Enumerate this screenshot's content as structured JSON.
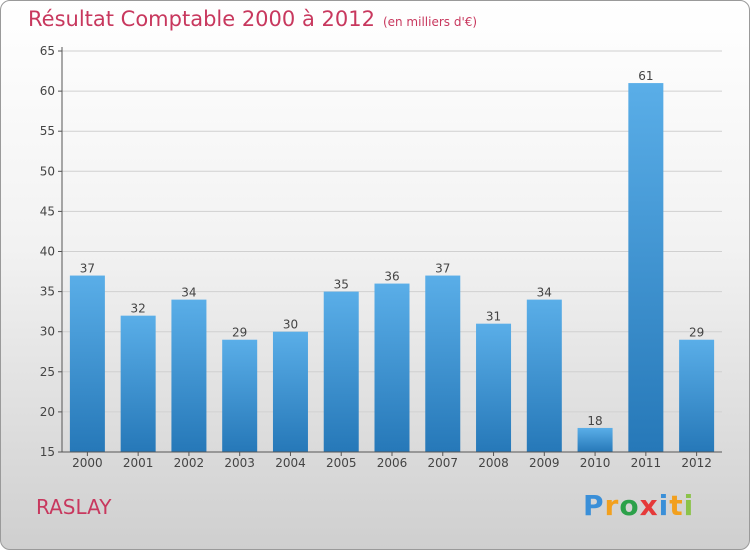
{
  "header": {
    "title": "Résultat Comptable 2000 à 2012",
    "unit": "(en milliers d'€)"
  },
  "footer": {
    "town": "RASLAY",
    "brand": "Proxiti"
  },
  "colors": {
    "bar_top": "#5aaee8",
    "bar_bottom": "#2678b8",
    "axis": "#555555",
    "grid": "#d0d0d0",
    "title": "#c8385e"
  },
  "chart_data": {
    "type": "bar",
    "title": "Résultat Comptable 2000 à 2012",
    "subtitle": "(en milliers d'€)",
    "xlabel": "",
    "ylabel": "",
    "categories": [
      "2000",
      "2001",
      "2002",
      "2003",
      "2004",
      "2005",
      "2006",
      "2007",
      "2008",
      "2009",
      "2010",
      "2011",
      "2012"
    ],
    "values": [
      37,
      32,
      34,
      29,
      30,
      35,
      36,
      37,
      31,
      34,
      18,
      61,
      29
    ],
    "ylim": [
      15,
      65
    ],
    "yticks": [
      15,
      20,
      25,
      30,
      35,
      40,
      45,
      50,
      55,
      60,
      65
    ],
    "grid": true,
    "legend": "none"
  }
}
